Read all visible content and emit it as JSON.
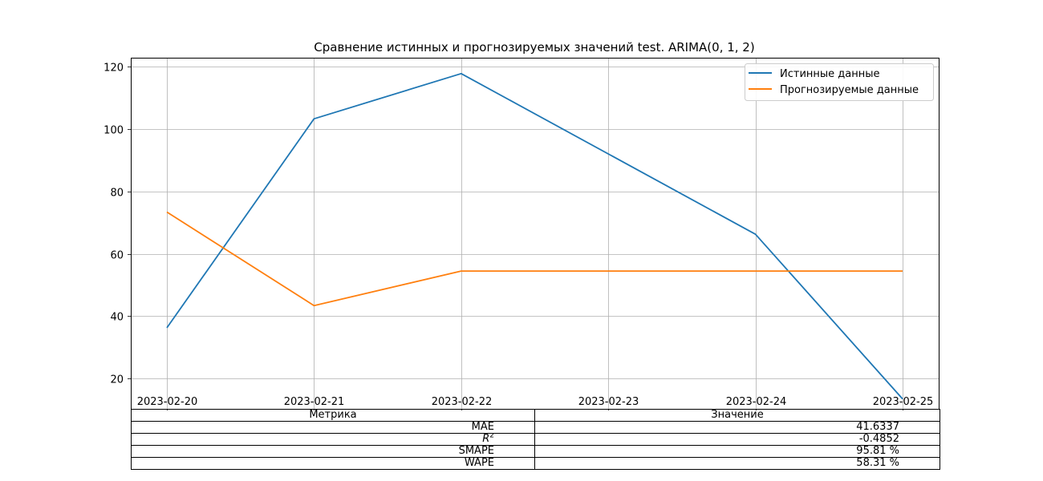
{
  "chart_data": {
    "type": "line",
    "title": "Сравнение истинных и прогнозируемых значений test. ARIMA(0, 1, 2)",
    "categories": [
      "2023-02-20",
      "2023-02-21",
      "2023-02-22",
      "2023-02-23",
      "2023-02-24",
      "2023-02-25"
    ],
    "series": [
      {
        "name": "Истинные данные",
        "color": "#1f77b4",
        "points": [
          [
            "2023-02-20",
            36.3
          ],
          [
            "2023-02-21",
            103.3
          ],
          [
            "2023-02-22",
            117.8
          ],
          [
            "2023-02-24",
            66.3
          ],
          [
            "2023-02-25",
            13.5
          ]
        ]
      },
      {
        "name": "Прогнозируемые данные",
        "color": "#ff7f0e",
        "points": [
          [
            "2023-02-20",
            73.4
          ],
          [
            "2023-02-21",
            43.4
          ],
          [
            "2023-02-22",
            54.5
          ],
          [
            "2023-02-23",
            54.5
          ],
          [
            "2023-02-24",
            54.5
          ],
          [
            "2023-02-25",
            54.5
          ]
        ]
      }
    ],
    "ylim": [
      10.3,
      122.9
    ],
    "yticks": [
      20,
      40,
      60,
      80,
      100,
      120
    ],
    "grid": true,
    "legend": "top-right"
  },
  "table": {
    "headers": [
      "Метрика",
      "Значение"
    ],
    "rows": [
      {
        "metric": "MAE",
        "value": "41.6337"
      },
      {
        "metric": "R^2",
        "value": "-0.4852"
      },
      {
        "metric": "SMAPE",
        "value": "95.81 %"
      },
      {
        "metric": "WAPE",
        "value": "58.31 %"
      }
    ]
  }
}
